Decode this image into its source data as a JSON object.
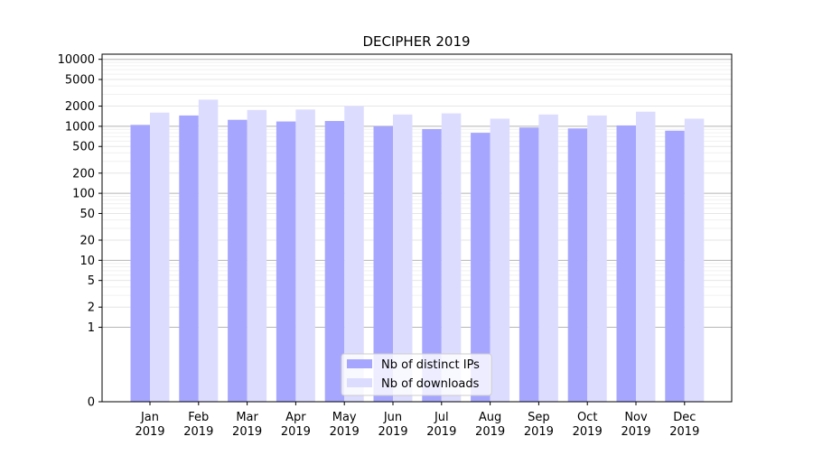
{
  "chart_data": {
    "type": "bar",
    "title": "DECIPHER 2019",
    "xlabel": "",
    "ylabel": "",
    "yscale": "symlog",
    "ylim": [
      0,
      10000
    ],
    "yticks": [
      0,
      1,
      2,
      5,
      10,
      20,
      50,
      100,
      200,
      500,
      1000,
      2000,
      5000,
      10000
    ],
    "grid": true,
    "legend_position": "bottom-center",
    "categories": [
      "Jan\n2019",
      "Feb\n2019",
      "Mar\n2019",
      "Apr\n2019",
      "May\n2019",
      "Jun\n2019",
      "Jul\n2019",
      "Aug\n2019",
      "Sep\n2019",
      "Oct\n2019",
      "Nov\n2019",
      "Dec\n2019"
    ],
    "series": [
      {
        "name": "Nb of distinct IPs",
        "color": "#a6a6ff",
        "values": [
          1050,
          1450,
          1250,
          1180,
          1200,
          1000,
          910,
          800,
          960,
          930,
          1030,
          860
        ]
      },
      {
        "name": "Nb of downloads",
        "color": "#dcdcff",
        "values": [
          1600,
          2500,
          1750,
          1780,
          2000,
          1500,
          1560,
          1300,
          1500,
          1450,
          1650,
          1300
        ]
      }
    ]
  }
}
